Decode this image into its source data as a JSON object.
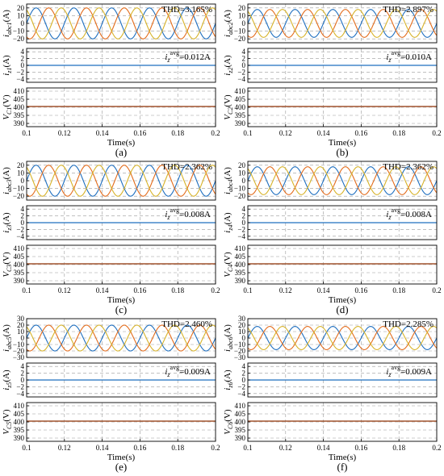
{
  "colors": {
    "phase_a": "#1f6fbf",
    "phase_b": "#e36c1c",
    "phase_c": "#d7b32a",
    "iz": "#1f6fbf",
    "vc": "#a0522d",
    "grid": "#9a9a9a",
    "frame": "#000000"
  },
  "chart_data": [
    {
      "type": "line",
      "label": "(a)",
      "x": {
        "label": "Time(s)",
        "ticks": [
          "0.1",
          "0.12",
          "0.14",
          "0.16",
          "0.18",
          "0.2"
        ],
        "lim": [
          0.1,
          0.2
        ]
      },
      "current_plot": {
        "ylabel": "i_{abc1}(A)",
        "ylabel_main": "i",
        "ylabel_sub": "abc1",
        "ylabel_unit": "(A)",
        "yticks": [
          "20",
          "10",
          "0",
          "−10",
          "−20"
        ],
        "ylim": [
          -25,
          25
        ],
        "annotation": "THD=3.165%",
        "series": [
          {
            "phase": "a",
            "amplitude": 20,
            "frequency_hz": 50,
            "phase_deg": 0
          },
          {
            "phase": "b",
            "amplitude": 20,
            "frequency_hz": 50,
            "phase_deg": -120
          },
          {
            "phase": "c",
            "amplitude": 20,
            "frequency_hz": 50,
            "phase_deg": 120
          }
        ]
      },
      "zero_current_plot": {
        "ylabel": "i_{z1}(A)",
        "ylabel_main": "i",
        "ylabel_sub": "z1",
        "ylabel_unit": "(A)",
        "yticks": [
          "4",
          "2",
          "0",
          "−2",
          "−4"
        ],
        "ylim": [
          -5,
          5
        ],
        "value": 0,
        "annotation_main": "i",
        "annotation_sub": "z",
        "annotation_sup": "avg",
        "annotation_value": "=0.012A"
      },
      "voltage_plot": {
        "ylabel": "V_{C1}(V)",
        "ylabel_main": "V",
        "ylabel_sub": "C1",
        "ylabel_unit": "(V)",
        "yticks": [
          "410",
          "405",
          "400",
          "395",
          "390"
        ],
        "ylim": [
          388,
          412
        ],
        "value": 400.5
      }
    },
    {
      "type": "line",
      "label": "(b)",
      "x": {
        "label": "Time(s)",
        "ticks": [
          "0.1",
          "0.12",
          "0.14",
          "0.16",
          "0.18",
          "0.2"
        ],
        "lim": [
          0.1,
          0.2
        ]
      },
      "current_plot": {
        "ylabel": "i_{abc2}(A)",
        "ylabel_main": "i",
        "ylabel_sub": "abc2",
        "ylabel_unit": "(A)",
        "yticks": [
          "20",
          "10",
          "0",
          "−10",
          "−20"
        ],
        "ylim": [
          -25,
          25
        ],
        "annotation": "THD=2.897%",
        "series": [
          {
            "phase": "a",
            "amplitude": 18,
            "frequency_hz": 50,
            "phase_deg": 0
          },
          {
            "phase": "b",
            "amplitude": 18,
            "frequency_hz": 50,
            "phase_deg": -120
          },
          {
            "phase": "c",
            "amplitude": 18,
            "frequency_hz": 50,
            "phase_deg": 120
          }
        ]
      },
      "zero_current_plot": {
        "ylabel": "i_{z2}(A)",
        "ylabel_main": "i",
        "ylabel_sub": "z2",
        "ylabel_unit": "(A)",
        "yticks": [
          "4",
          "2",
          "0",
          "−2",
          "−4"
        ],
        "ylim": [
          -5,
          5
        ],
        "value": 0,
        "annotation_main": "i",
        "annotation_sub": "z",
        "annotation_sup": "avg",
        "annotation_value": "=0.010A"
      },
      "voltage_plot": {
        "ylabel": "V_{C2}(V)",
        "ylabel_main": "V",
        "ylabel_sub": "C2",
        "ylabel_unit": "(V)",
        "yticks": [
          "410",
          "405",
          "400",
          "395",
          "390"
        ],
        "ylim": [
          388,
          412
        ],
        "value": 400.5
      }
    },
    {
      "type": "line",
      "label": "(c)",
      "x": {
        "label": "Time(s)",
        "ticks": [
          "0.1",
          "0.12",
          "0.14",
          "0.16",
          "0.18",
          "0.2"
        ],
        "lim": [
          0.1,
          0.2
        ]
      },
      "current_plot": {
        "ylabel": "i_{abc3}(A)",
        "ylabel_main": "i",
        "ylabel_sub": "abc3",
        "ylabel_unit": "(A)",
        "yticks": [
          "20",
          "10",
          "0",
          "−10",
          "−20"
        ],
        "ylim": [
          -25,
          25
        ],
        "annotation": "THD=2.362%",
        "series": [
          {
            "phase": "a",
            "amplitude": 20,
            "frequency_hz": 50,
            "phase_deg": 0
          },
          {
            "phase": "b",
            "amplitude": 20,
            "frequency_hz": 50,
            "phase_deg": -120
          },
          {
            "phase": "c",
            "amplitude": 20,
            "frequency_hz": 50,
            "phase_deg": 120
          }
        ]
      },
      "zero_current_plot": {
        "ylabel": "i_{z3}(A)",
        "ylabel_main": "i",
        "ylabel_sub": "z3",
        "ylabel_unit": "(A)",
        "yticks": [
          "4",
          "2",
          "0",
          "−2",
          "−4"
        ],
        "ylim": [
          -5,
          5
        ],
        "value": 0,
        "annotation_main": "i",
        "annotation_sub": "z",
        "annotation_sup": "avg",
        "annotation_value": "=0.008A"
      },
      "voltage_plot": {
        "ylabel": "V_{C3}(V)",
        "ylabel_main": "V",
        "ylabel_sub": "C3",
        "ylabel_unit": "(V)",
        "yticks": [
          "410",
          "405",
          "400",
          "395",
          "390"
        ],
        "ylim": [
          388,
          412
        ],
        "value": 400.5
      }
    },
    {
      "type": "line",
      "label": "(d)",
      "x": {
        "label": "Time(s)",
        "ticks": [
          "0.1",
          "0.12",
          "0.14",
          "0.16",
          "0.18",
          "0.2"
        ],
        "lim": [
          0.1,
          0.2
        ]
      },
      "current_plot": {
        "ylabel": "i_{abc4}(A)",
        "ylabel_main": "i",
        "ylabel_sub": "abc4",
        "ylabel_unit": "(A)",
        "yticks": [
          "20",
          "10",
          "0",
          "−10",
          "−20"
        ],
        "ylim": [
          -25,
          25
        ],
        "annotation": "THD=2.362%",
        "series": [
          {
            "phase": "a",
            "amplitude": 18,
            "frequency_hz": 50,
            "phase_deg": 0
          },
          {
            "phase": "b",
            "amplitude": 18,
            "frequency_hz": 50,
            "phase_deg": -120
          },
          {
            "phase": "c",
            "amplitude": 18,
            "frequency_hz": 50,
            "phase_deg": 120
          }
        ]
      },
      "zero_current_plot": {
        "ylabel": "i_{z4}(A)",
        "ylabel_main": "i",
        "ylabel_sub": "z4",
        "ylabel_unit": "(A)",
        "yticks": [
          "4",
          "2",
          "0",
          "−2",
          "−4"
        ],
        "ylim": [
          -5,
          5
        ],
        "value": 0,
        "annotation_main": "i",
        "annotation_sub": "z",
        "annotation_sup": "avg",
        "annotation_value": "=0.008A"
      },
      "voltage_plot": {
        "ylabel": "V_{C4}(V)",
        "ylabel_main": "V",
        "ylabel_sub": "C4",
        "ylabel_unit": "(V)",
        "yticks": [
          "410",
          "405",
          "400",
          "395",
          "390"
        ],
        "ylim": [
          388,
          412
        ],
        "value": 400.5
      }
    },
    {
      "type": "line",
      "label": "(e)",
      "x": {
        "label": "Time(s)",
        "ticks": [
          "0.1",
          "0.12",
          "0.14",
          "0.16",
          "0.18",
          "0.2"
        ],
        "lim": [
          0.1,
          0.2
        ]
      },
      "current_plot": {
        "ylabel": "i_{abc5}(A)",
        "ylabel_main": "i",
        "ylabel_sub": "abc5",
        "ylabel_unit": "(A)",
        "yticks": [
          "30",
          "20",
          "10",
          "0",
          "−10",
          "−20",
          "−30"
        ],
        "ylim": [
          -30,
          30
        ],
        "annotation": "THD=2.460%",
        "series": [
          {
            "phase": "a",
            "amplitude": 20,
            "frequency_hz": 50,
            "phase_deg": 0
          },
          {
            "phase": "b",
            "amplitude": 20,
            "frequency_hz": 50,
            "phase_deg": -120
          },
          {
            "phase": "c",
            "amplitude": 20,
            "frequency_hz": 50,
            "phase_deg": 120
          }
        ]
      },
      "zero_current_plot": {
        "ylabel": "i_{z5}(A)",
        "ylabel_main": "i",
        "ylabel_sub": "z5",
        "ylabel_unit": "(A)",
        "yticks": [
          "4",
          "2",
          "0",
          "−2",
          "−4"
        ],
        "ylim": [
          -5,
          5
        ],
        "value": 0,
        "annotation_main": "i",
        "annotation_sub": "z",
        "annotation_sup": "avg",
        "annotation_value": "=0.009A"
      },
      "voltage_plot": {
        "ylabel": "V_{C5}(V)",
        "ylabel_main": "V",
        "ylabel_sub": "C5",
        "ylabel_unit": "(V)",
        "yticks": [
          "410",
          "405",
          "400",
          "395",
          "390"
        ],
        "ylim": [
          388,
          412
        ],
        "value": 400.5
      }
    },
    {
      "type": "line",
      "label": "(f)",
      "x": {
        "label": "Time(s)",
        "ticks": [
          "0.1",
          "0.12",
          "0.14",
          "0.16",
          "0.18",
          "0.2"
        ],
        "lim": [
          0.1,
          0.2
        ]
      },
      "current_plot": {
        "ylabel": "i_{abc6}(A)",
        "ylabel_main": "i",
        "ylabel_sub": "abc6",
        "ylabel_unit": "(A)",
        "yticks": [
          "30",
          "20",
          "10",
          "0",
          "−10",
          "−20",
          "−30"
        ],
        "ylim": [
          -30,
          30
        ],
        "annotation": "THD=2.285%",
        "series": [
          {
            "phase": "a",
            "amplitude": 18,
            "frequency_hz": 50,
            "phase_deg": 0
          },
          {
            "phase": "b",
            "amplitude": 18,
            "frequency_hz": 50,
            "phase_deg": -120
          },
          {
            "phase": "c",
            "amplitude": 18,
            "frequency_hz": 50,
            "phase_deg": 120
          }
        ]
      },
      "zero_current_plot": {
        "ylabel": "i_{z6}(A)",
        "ylabel_main": "i",
        "ylabel_sub": "z6",
        "ylabel_unit": "(A)",
        "yticks": [
          "4",
          "2",
          "0",
          "−2",
          "−4"
        ],
        "ylim": [
          -5,
          5
        ],
        "value": 0,
        "annotation_main": "i",
        "annotation_sub": "z",
        "annotation_sup": "avg",
        "annotation_value": "=0.009A"
      },
      "voltage_plot": {
        "ylabel": "V_{C6}(V)",
        "ylabel_main": "V",
        "ylabel_sub": "C6",
        "ylabel_unit": "(V)",
        "yticks": [
          "410",
          "405",
          "400",
          "395",
          "390"
        ],
        "ylim": [
          388,
          412
        ],
        "value": 400.5
      }
    }
  ]
}
